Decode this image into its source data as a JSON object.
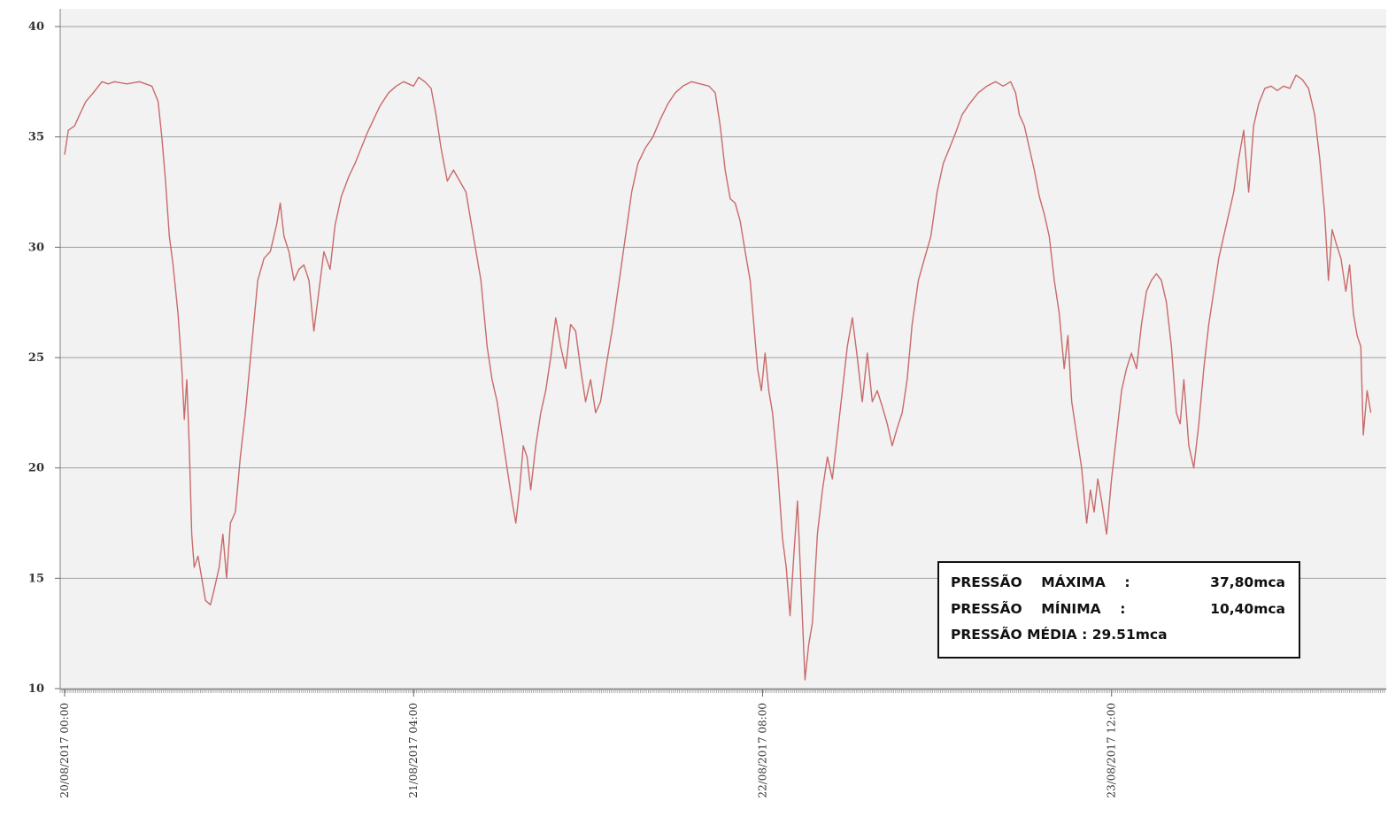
{
  "chart_data": {
    "type": "line",
    "title": "",
    "xlabel": "",
    "ylabel": "",
    "ylim": [
      10,
      40
    ],
    "yticks": [
      "10",
      "15",
      "20",
      "25",
      "30",
      "35",
      "40"
    ],
    "xticks": [
      "20/08/2017 00:00",
      "21/08/2017 04:00",
      "22/08/2017 08:00",
      "23/08/2017 12:00"
    ],
    "grid": true,
    "legend": "none",
    "colors": {
      "line": "#c96a6a",
      "plot_bg": "#f2f2f2",
      "grid": "#a0a0a0",
      "box_border": "#111111"
    },
    "x_unit": "hours from 20/08/2017 00:00",
    "series": [
      {
        "name": "",
        "points": [
          [
            0.0,
            34.2
          ],
          [
            0.3,
            35.3
          ],
          [
            0.8,
            35.5
          ],
          [
            1.2,
            36.0
          ],
          [
            1.7,
            36.6
          ],
          [
            2.3,
            37.0
          ],
          [
            3.0,
            37.5
          ],
          [
            3.5,
            37.4
          ],
          [
            4.0,
            37.5
          ],
          [
            5.0,
            37.4
          ],
          [
            6.0,
            37.5
          ],
          [
            7.0,
            37.3
          ],
          [
            7.5,
            36.6
          ],
          [
            7.8,
            35.0
          ],
          [
            8.1,
            33.0
          ],
          [
            8.4,
            30.5
          ],
          [
            8.7,
            29.2
          ],
          [
            9.1,
            27.0
          ],
          [
            9.4,
            24.5
          ],
          [
            9.6,
            22.2
          ],
          [
            9.8,
            24.0
          ],
          [
            10.0,
            21.0
          ],
          [
            10.2,
            17.0
          ],
          [
            10.4,
            15.5
          ],
          [
            10.7,
            16.0
          ],
          [
            11.0,
            15.0
          ],
          [
            11.3,
            14.0
          ],
          [
            11.7,
            13.8
          ],
          [
            12.0,
            14.5
          ],
          [
            12.4,
            15.5
          ],
          [
            12.7,
            17.0
          ],
          [
            13.0,
            15.0
          ],
          [
            13.3,
            17.5
          ],
          [
            13.7,
            18.0
          ],
          [
            14.1,
            20.5
          ],
          [
            14.5,
            22.5
          ],
          [
            15.0,
            25.5
          ],
          [
            15.5,
            28.5
          ],
          [
            16.0,
            29.5
          ],
          [
            16.5,
            29.8
          ],
          [
            17.0,
            31.0
          ],
          [
            17.3,
            32.0
          ],
          [
            17.6,
            30.5
          ],
          [
            18.0,
            29.8
          ],
          [
            18.4,
            28.5
          ],
          [
            18.8,
            29.0
          ],
          [
            19.2,
            29.2
          ],
          [
            19.6,
            28.5
          ],
          [
            20.0,
            26.2
          ],
          [
            20.4,
            28.0
          ],
          [
            20.8,
            29.8
          ],
          [
            21.3,
            29.0
          ],
          [
            21.7,
            31.0
          ],
          [
            22.2,
            32.3
          ],
          [
            22.8,
            33.2
          ],
          [
            23.3,
            33.8
          ],
          [
            23.8,
            34.5
          ],
          [
            24.3,
            35.2
          ],
          [
            24.8,
            35.8
          ],
          [
            25.3,
            36.4
          ],
          [
            26.0,
            37.0
          ],
          [
            26.6,
            37.3
          ],
          [
            27.2,
            37.5
          ],
          [
            28.0,
            37.3
          ],
          [
            28.4,
            37.7
          ],
          [
            28.9,
            37.5
          ],
          [
            29.4,
            37.2
          ],
          [
            29.8,
            36.0
          ],
          [
            30.2,
            34.5
          ],
          [
            30.7,
            33.0
          ],
          [
            31.2,
            33.5
          ],
          [
            31.7,
            33.0
          ],
          [
            32.2,
            32.5
          ],
          [
            32.8,
            30.5
          ],
          [
            33.4,
            28.5
          ],
          [
            33.9,
            25.5
          ],
          [
            34.3,
            24.0
          ],
          [
            34.7,
            23.0
          ],
          [
            35.1,
            21.5
          ],
          [
            35.5,
            20.0
          ],
          [
            35.9,
            18.5
          ],
          [
            36.2,
            17.5
          ],
          [
            36.5,
            19.0
          ],
          [
            36.8,
            21.0
          ],
          [
            37.1,
            20.5
          ],
          [
            37.4,
            19.0
          ],
          [
            37.8,
            21.0
          ],
          [
            38.2,
            22.5
          ],
          [
            38.6,
            23.5
          ],
          [
            39.0,
            25.0
          ],
          [
            39.4,
            26.8
          ],
          [
            39.8,
            25.5
          ],
          [
            40.2,
            24.5
          ],
          [
            40.6,
            26.5
          ],
          [
            41.0,
            26.2
          ],
          [
            41.4,
            24.5
          ],
          [
            41.8,
            23.0
          ],
          [
            42.2,
            24.0
          ],
          [
            42.6,
            22.5
          ],
          [
            43.0,
            23.0
          ],
          [
            43.5,
            24.8
          ],
          [
            44.0,
            26.5
          ],
          [
            44.5,
            28.5
          ],
          [
            45.0,
            30.5
          ],
          [
            45.5,
            32.5
          ],
          [
            46.0,
            33.8
          ],
          [
            46.6,
            34.5
          ],
          [
            47.2,
            35.0
          ],
          [
            47.8,
            35.8
          ],
          [
            48.4,
            36.5
          ],
          [
            49.0,
            37.0
          ],
          [
            49.6,
            37.3
          ],
          [
            50.3,
            37.5
          ],
          [
            51.0,
            37.4
          ],
          [
            51.7,
            37.3
          ],
          [
            52.2,
            37.0
          ],
          [
            52.6,
            35.5
          ],
          [
            53.0,
            33.5
          ],
          [
            53.4,
            32.2
          ],
          [
            53.8,
            32.0
          ],
          [
            54.2,
            31.2
          ],
          [
            54.6,
            29.8
          ],
          [
            55.0,
            28.5
          ],
          [
            55.3,
            26.5
          ],
          [
            55.6,
            24.5
          ],
          [
            55.9,
            23.5
          ],
          [
            56.2,
            25.2
          ],
          [
            56.5,
            23.5
          ],
          [
            56.8,
            22.5
          ],
          [
            57.2,
            20.0
          ],
          [
            57.6,
            16.8
          ],
          [
            57.9,
            15.5
          ],
          [
            58.2,
            13.3
          ],
          [
            58.5,
            16.0
          ],
          [
            58.8,
            18.5
          ],
          [
            59.1,
            14.5
          ],
          [
            59.4,
            10.4
          ],
          [
            59.7,
            12.0
          ],
          [
            60.0,
            13.0
          ],
          [
            60.4,
            17.0
          ],
          [
            60.8,
            19.0
          ],
          [
            61.2,
            20.5
          ],
          [
            61.6,
            19.5
          ],
          [
            62.0,
            21.5
          ],
          [
            62.4,
            23.5
          ],
          [
            62.8,
            25.5
          ],
          [
            63.2,
            26.8
          ],
          [
            63.6,
            25.0
          ],
          [
            64.0,
            23.0
          ],
          [
            64.4,
            25.2
          ],
          [
            64.8,
            23.0
          ],
          [
            65.2,
            23.5
          ],
          [
            65.6,
            22.8
          ],
          [
            66.0,
            22.0
          ],
          [
            66.4,
            21.0
          ],
          [
            66.8,
            21.8
          ],
          [
            67.2,
            22.5
          ],
          [
            67.6,
            24.0
          ],
          [
            68.0,
            26.5
          ],
          [
            68.5,
            28.5
          ],
          [
            69.0,
            29.5
          ],
          [
            69.5,
            30.5
          ],
          [
            70.0,
            32.5
          ],
          [
            70.5,
            33.8
          ],
          [
            71.0,
            34.5
          ],
          [
            71.5,
            35.2
          ],
          [
            72.0,
            36.0
          ],
          [
            72.6,
            36.5
          ],
          [
            73.3,
            37.0
          ],
          [
            74.0,
            37.3
          ],
          [
            74.7,
            37.5
          ],
          [
            75.3,
            37.3
          ],
          [
            75.9,
            37.5
          ],
          [
            76.3,
            37.0
          ],
          [
            76.6,
            36.0
          ],
          [
            77.0,
            35.5
          ],
          [
            77.4,
            34.5
          ],
          [
            77.8,
            33.5
          ],
          [
            78.2,
            32.3
          ],
          [
            78.6,
            31.5
          ],
          [
            79.0,
            30.5
          ],
          [
            79.4,
            28.5
          ],
          [
            79.8,
            27.0
          ],
          [
            80.2,
            24.5
          ],
          [
            80.5,
            26.0
          ],
          [
            80.8,
            23.0
          ],
          [
            81.2,
            21.5
          ],
          [
            81.6,
            20.0
          ],
          [
            82.0,
            17.5
          ],
          [
            82.3,
            19.0
          ],
          [
            82.6,
            18.0
          ],
          [
            82.9,
            19.5
          ],
          [
            83.2,
            18.5
          ],
          [
            83.6,
            17.0
          ],
          [
            84.0,
            19.5
          ],
          [
            84.4,
            21.5
          ],
          [
            84.8,
            23.5
          ],
          [
            85.2,
            24.5
          ],
          [
            85.6,
            25.2
          ],
          [
            86.0,
            24.5
          ],
          [
            86.4,
            26.5
          ],
          [
            86.8,
            28.0
          ],
          [
            87.2,
            28.5
          ],
          [
            87.6,
            28.8
          ],
          [
            88.0,
            28.5
          ],
          [
            88.4,
            27.5
          ],
          [
            88.8,
            25.5
          ],
          [
            89.2,
            22.5
          ],
          [
            89.5,
            22.0
          ],
          [
            89.8,
            24.0
          ],
          [
            90.2,
            21.0
          ],
          [
            90.6,
            20.0
          ],
          [
            91.0,
            22.0
          ],
          [
            91.4,
            24.5
          ],
          [
            91.8,
            26.5
          ],
          [
            92.2,
            28.0
          ],
          [
            92.6,
            29.5
          ],
          [
            93.0,
            30.5
          ],
          [
            93.4,
            31.5
          ],
          [
            93.8,
            32.5
          ],
          [
            94.2,
            34.0
          ],
          [
            94.6,
            35.3
          ],
          [
            95.0,
            32.5
          ],
          [
            95.4,
            35.5
          ],
          [
            95.8,
            36.5
          ],
          [
            96.3,
            37.2
          ],
          [
            96.8,
            37.3
          ],
          [
            97.3,
            37.1
          ],
          [
            97.8,
            37.3
          ],
          [
            98.3,
            37.2
          ],
          [
            98.8,
            37.8
          ],
          [
            99.3,
            37.6
          ],
          [
            99.8,
            37.2
          ],
          [
            100.3,
            36.0
          ],
          [
            100.7,
            34.0
          ],
          [
            101.1,
            31.5
          ],
          [
            101.4,
            28.5
          ],
          [
            101.7,
            30.8
          ],
          [
            102.0,
            30.2
          ],
          [
            102.4,
            29.5
          ],
          [
            102.8,
            28.0
          ],
          [
            103.1,
            29.2
          ],
          [
            103.4,
            27.0
          ],
          [
            103.7,
            26.0
          ],
          [
            104.0,
            25.5
          ],
          [
            104.2,
            21.5
          ],
          [
            104.5,
            23.5
          ],
          [
            104.8,
            22.5
          ]
        ]
      }
    ]
  },
  "stats_box": {
    "lines": [
      {
        "label": "PRESSÃO    MÁXIMA    :",
        "value": "37,80mca"
      },
      {
        "label": "PRESSÃO    MÍNIMA    :",
        "value": "10,40mca"
      },
      {
        "label": "PRESSÃO MÉDIA : 29.51mca",
        "value": ""
      }
    ]
  }
}
